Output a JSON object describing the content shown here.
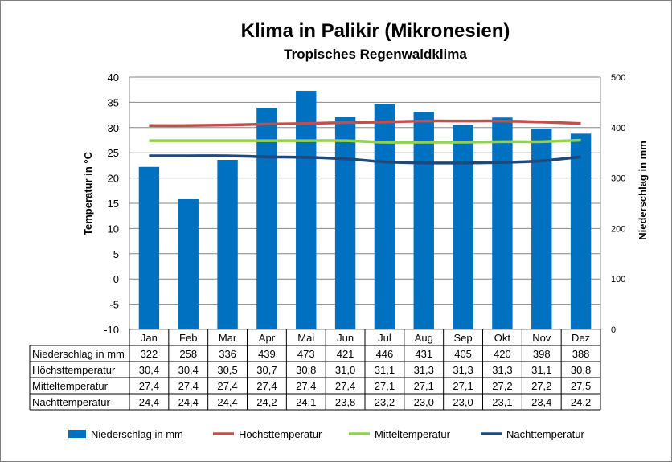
{
  "chart_data": {
    "type": "bar",
    "title": "Klima in Palikir (Mikronesien)",
    "subtitle": "Tropisches Regenwaldklima",
    "ylabel": "Temperatur in °C",
    "y2label": "Niederschlag in mm",
    "ylim": [
      -10,
      40
    ],
    "y_ticks": [
      "40",
      "35",
      "30",
      "25",
      "20",
      "15",
      "10",
      "5",
      "0",
      "-5",
      "-10"
    ],
    "y2lim": [
      0,
      500
    ],
    "y2_ticks": [
      "500",
      "400",
      "300",
      "200",
      "100",
      "0"
    ],
    "categories": [
      "Jan",
      "Feb",
      "Mar",
      "Apr",
      "Mai",
      "Jun",
      "Jul",
      "Aug",
      "Sep",
      "Okt",
      "Nov",
      "Dez"
    ],
    "grid": true,
    "legend_position": "bottom",
    "series": [
      {
        "name": "Niederschlag in mm",
        "kind": "bar",
        "axis": "right",
        "color": "#0070c0",
        "values": [
          322,
          258,
          336,
          439,
          473,
          421,
          446,
          431,
          405,
          420,
          398,
          388
        ],
        "display": [
          "322",
          "258",
          "336",
          "439",
          "473",
          "421",
          "446",
          "431",
          "405",
          "420",
          "398",
          "388"
        ]
      },
      {
        "name": "Höchsttemperatur",
        "kind": "line",
        "axis": "left",
        "color": "#c0504d",
        "values": [
          30.4,
          30.4,
          30.5,
          30.7,
          30.8,
          31.0,
          31.1,
          31.3,
          31.3,
          31.3,
          31.1,
          30.8
        ],
        "display": [
          "30,4",
          "30,4",
          "30,5",
          "30,7",
          "30,8",
          "31,0",
          "31,1",
          "31,3",
          "31,3",
          "31,3",
          "31,1",
          "30,8"
        ]
      },
      {
        "name": "Mitteltemperatur",
        "kind": "line",
        "axis": "left",
        "color": "#92d050",
        "values": [
          27.4,
          27.4,
          27.4,
          27.4,
          27.4,
          27.4,
          27.1,
          27.1,
          27.1,
          27.2,
          27.2,
          27.5
        ],
        "display": [
          "27,4",
          "27,4",
          "27,4",
          "27,4",
          "27,4",
          "27,4",
          "27,1",
          "27,1",
          "27,1",
          "27,2",
          "27,2",
          "27,5"
        ]
      },
      {
        "name": "Nachttemperatur",
        "kind": "line",
        "axis": "left",
        "color": "#1f497d",
        "values": [
          24.4,
          24.4,
          24.4,
          24.2,
          24.1,
          23.8,
          23.2,
          23.0,
          23.0,
          23.1,
          23.4,
          24.2
        ],
        "display": [
          "24,4",
          "24,4",
          "24,4",
          "24,2",
          "24,1",
          "23,8",
          "23,2",
          "23,0",
          "23,0",
          "23,1",
          "23,4",
          "24,2"
        ]
      }
    ]
  }
}
